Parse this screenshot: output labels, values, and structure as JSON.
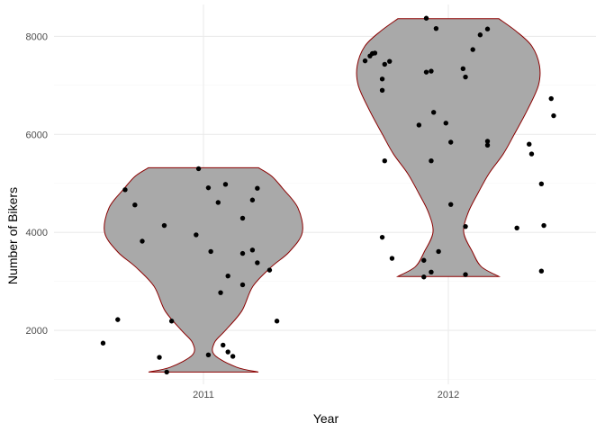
{
  "chart_data": {
    "type": "violin",
    "xlabel": "Year",
    "ylabel": "Number of Bikers",
    "categories": [
      "2011",
      "2012"
    ],
    "ylim": [
      900,
      8650
    ],
    "y_ticks": [
      2000,
      4000,
      6000,
      8000
    ],
    "y_tick_labels": [
      "2000",
      "4000",
      "6000",
      "8000"
    ],
    "grid": true,
    "colors": {
      "violin_fill": "#a9a9a9",
      "violin_outline": "#8b0000",
      "points": "#000000",
      "grid_major": "#ebebeb",
      "grid_minor": "#f5f5f5"
    },
    "violins": [
      {
        "category": "2011",
        "min": 1150,
        "max": 5320,
        "profile": [
          [
            1150,
            0.5
          ],
          [
            1250,
            0.3
          ],
          [
            1500,
            0.1
          ],
          [
            1750,
            0.1
          ],
          [
            2000,
            0.2
          ],
          [
            2400,
            0.35
          ],
          [
            2900,
            0.45
          ],
          [
            3300,
            0.62
          ],
          [
            3600,
            0.78
          ],
          [
            4000,
            0.9
          ],
          [
            4500,
            0.86
          ],
          [
            4900,
            0.72
          ],
          [
            5150,
            0.62
          ],
          [
            5320,
            0.5
          ]
        ]
      },
      {
        "category": "2012",
        "min": 3100,
        "max": 8360,
        "profile": [
          [
            3100,
            0.46
          ],
          [
            3300,
            0.3
          ],
          [
            3600,
            0.22
          ],
          [
            4000,
            0.14
          ],
          [
            4400,
            0.18
          ],
          [
            4800,
            0.27
          ],
          [
            5200,
            0.37
          ],
          [
            5600,
            0.5
          ],
          [
            6000,
            0.6
          ],
          [
            6500,
            0.72
          ],
          [
            7000,
            0.82
          ],
          [
            7400,
            0.83
          ],
          [
            7800,
            0.76
          ],
          [
            8100,
            0.62
          ],
          [
            8360,
            0.46
          ]
        ]
      }
    ],
    "points": [
      {
        "category": "2011",
        "jitter": -0.41,
        "y": 1740
      },
      {
        "category": "2011",
        "jitter": -0.35,
        "y": 2220
      },
      {
        "category": "2011",
        "jitter": -0.32,
        "y": 4870
      },
      {
        "category": "2011",
        "jitter": -0.28,
        "y": 4560
      },
      {
        "category": "2011",
        "jitter": -0.25,
        "y": 3820
      },
      {
        "category": "2011",
        "jitter": -0.18,
        "y": 1450
      },
      {
        "category": "2011",
        "jitter": -0.16,
        "y": 4140
      },
      {
        "category": "2011",
        "jitter": -0.15,
        "y": 1150
      },
      {
        "category": "2011",
        "jitter": -0.13,
        "y": 2190
      },
      {
        "category": "2011",
        "jitter": -0.03,
        "y": 3950
      },
      {
        "category": "2011",
        "jitter": -0.02,
        "y": 5300
      },
      {
        "category": "2011",
        "jitter": 0.02,
        "y": 4910
      },
      {
        "category": "2011",
        "jitter": 0.03,
        "y": 3610
      },
      {
        "category": "2011",
        "jitter": 0.02,
        "y": 1500
      },
      {
        "category": "2011",
        "jitter": 0.06,
        "y": 4610
      },
      {
        "category": "2011",
        "jitter": 0.07,
        "y": 2770
      },
      {
        "category": "2011",
        "jitter": 0.08,
        "y": 1700
      },
      {
        "category": "2011",
        "jitter": 0.09,
        "y": 4980
      },
      {
        "category": "2011",
        "jitter": 0.1,
        "y": 3110
      },
      {
        "category": "2011",
        "jitter": 0.1,
        "y": 1560
      },
      {
        "category": "2011",
        "jitter": 0.12,
        "y": 1470
      },
      {
        "category": "2011",
        "jitter": 0.16,
        "y": 4290
      },
      {
        "category": "2011",
        "jitter": 0.16,
        "y": 3570
      },
      {
        "category": "2011",
        "jitter": 0.16,
        "y": 2930
      },
      {
        "category": "2011",
        "jitter": 0.2,
        "y": 4660
      },
      {
        "category": "2011",
        "jitter": 0.2,
        "y": 3640
      },
      {
        "category": "2011",
        "jitter": 0.22,
        "y": 3380
      },
      {
        "category": "2011",
        "jitter": 0.22,
        "y": 4900
      },
      {
        "category": "2011",
        "jitter": 0.27,
        "y": 3230
      },
      {
        "category": "2011",
        "jitter": 0.3,
        "y": 2190
      },
      {
        "category": "2012",
        "jitter": -0.34,
        "y": 7500
      },
      {
        "category": "2012",
        "jitter": -0.32,
        "y": 7600
      },
      {
        "category": "2012",
        "jitter": -0.31,
        "y": 7650
      },
      {
        "category": "2012",
        "jitter": -0.3,
        "y": 7660
      },
      {
        "category": "2012",
        "jitter": -0.27,
        "y": 7130
      },
      {
        "category": "2012",
        "jitter": -0.27,
        "y": 6900
      },
      {
        "category": "2012",
        "jitter": -0.26,
        "y": 7430
      },
      {
        "category": "2012",
        "jitter": -0.26,
        "y": 5460
      },
      {
        "category": "2012",
        "jitter": -0.27,
        "y": 3900
      },
      {
        "category": "2012",
        "jitter": -0.24,
        "y": 7490
      },
      {
        "category": "2012",
        "jitter": -0.23,
        "y": 3470
      },
      {
        "category": "2012",
        "jitter": -0.12,
        "y": 6190
      },
      {
        "category": "2012",
        "jitter": -0.1,
        "y": 3430
      },
      {
        "category": "2012",
        "jitter": -0.1,
        "y": 3090
      },
      {
        "category": "2012",
        "jitter": -0.09,
        "y": 7270
      },
      {
        "category": "2012",
        "jitter": -0.09,
        "y": 8370
      },
      {
        "category": "2012",
        "jitter": -0.07,
        "y": 3190
      },
      {
        "category": "2012",
        "jitter": -0.07,
        "y": 7290
      },
      {
        "category": "2012",
        "jitter": -0.07,
        "y": 5460
      },
      {
        "category": "2012",
        "jitter": -0.06,
        "y": 6450
      },
      {
        "category": "2012",
        "jitter": -0.05,
        "y": 8160
      },
      {
        "category": "2012",
        "jitter": -0.04,
        "y": 3610
      },
      {
        "category": "2012",
        "jitter": -0.01,
        "y": 6230
      },
      {
        "category": "2012",
        "jitter": 0.01,
        "y": 5840
      },
      {
        "category": "2012",
        "jitter": 0.01,
        "y": 4570
      },
      {
        "category": "2012",
        "jitter": 0.06,
        "y": 7340
      },
      {
        "category": "2012",
        "jitter": 0.07,
        "y": 7170
      },
      {
        "category": "2012",
        "jitter": 0.07,
        "y": 4120
      },
      {
        "category": "2012",
        "jitter": 0.07,
        "y": 3140
      },
      {
        "category": "2012",
        "jitter": 0.1,
        "y": 7730
      },
      {
        "category": "2012",
        "jitter": 0.13,
        "y": 8030
      },
      {
        "category": "2012",
        "jitter": 0.16,
        "y": 8150
      },
      {
        "category": "2012",
        "jitter": 0.16,
        "y": 5860
      },
      {
        "category": "2012",
        "jitter": 0.16,
        "y": 5780
      },
      {
        "category": "2012",
        "jitter": 0.28,
        "y": 4090
      },
      {
        "category": "2012",
        "jitter": 0.33,
        "y": 5800
      },
      {
        "category": "2012",
        "jitter": 0.34,
        "y": 5600
      },
      {
        "category": "2012",
        "jitter": 0.38,
        "y": 4990
      },
      {
        "category": "2012",
        "jitter": 0.38,
        "y": 3210
      },
      {
        "category": "2012",
        "jitter": 0.39,
        "y": 4140
      },
      {
        "category": "2012",
        "jitter": 0.42,
        "y": 6730
      },
      {
        "category": "2012",
        "jitter": 0.43,
        "y": 6380
      }
    ]
  }
}
